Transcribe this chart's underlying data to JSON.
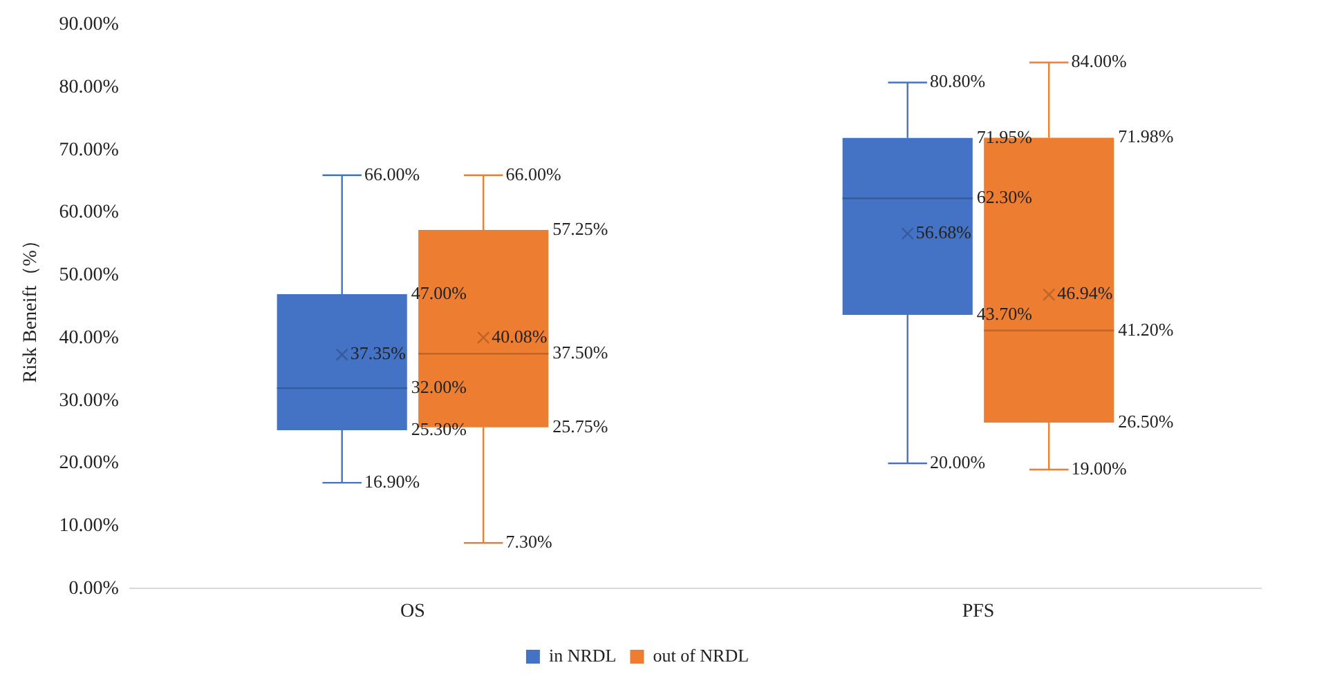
{
  "chart_data": {
    "type": "box",
    "ylabel": "Risk Beneift（%）",
    "categories": [
      "OS",
      "PFS"
    ],
    "series": [
      {
        "name": "in NRDL",
        "color": "#4472c4",
        "boxes": [
          {
            "low": 16.9,
            "q1": 25.3,
            "median": 32.0,
            "q3": 47.0,
            "high": 66.0,
            "mean": 37.35
          },
          {
            "low": 20.0,
            "q1": 43.7,
            "median": 62.3,
            "q3": 71.95,
            "high": 80.8,
            "mean": 56.68
          }
        ]
      },
      {
        "name": "out of NRDL",
        "color": "#ed7d31",
        "boxes": [
          {
            "low": 7.3,
            "q1": 25.75,
            "median": 37.5,
            "q3": 57.25,
            "high": 66.0,
            "mean": 40.08
          },
          {
            "low": 19.0,
            "q1": 26.5,
            "median": 41.2,
            "q3": 71.98,
            "high": 84.0,
            "mean": 46.94
          }
        ]
      }
    ],
    "ylim": [
      0,
      90
    ],
    "yticks": [
      {
        "value": 0,
        "label": "0.00%"
      },
      {
        "value": 10,
        "label": "10.00%"
      },
      {
        "value": 20,
        "label": "20.00%"
      },
      {
        "value": 30,
        "label": "30.00%"
      },
      {
        "value": 40,
        "label": "40.00%"
      },
      {
        "value": 50,
        "label": "50.00%"
      },
      {
        "value": 60,
        "label": "60.00%"
      },
      {
        "value": 70,
        "label": "70.00%"
      },
      {
        "value": 80,
        "label": "80.00%"
      },
      {
        "value": 90,
        "label": "90.00%"
      }
    ],
    "grid": false,
    "legend": "bottom",
    "marker": "cross",
    "annotations": [
      "66.00%",
      "47.00%",
      "37.35%",
      "32.00%",
      "25.30%",
      "16.90%",
      "66.00%",
      "57.25%",
      "40.08%",
      "37.50%",
      "25.75%",
      "7.30%",
      "80.80%",
      "71.95%",
      "56.68%",
      "62.30%",
      "43.70%",
      "20.00%",
      "84.00%",
      "71.98%",
      "46.94%",
      "41.20%",
      "26.50%",
      "19.00%"
    ]
  }
}
